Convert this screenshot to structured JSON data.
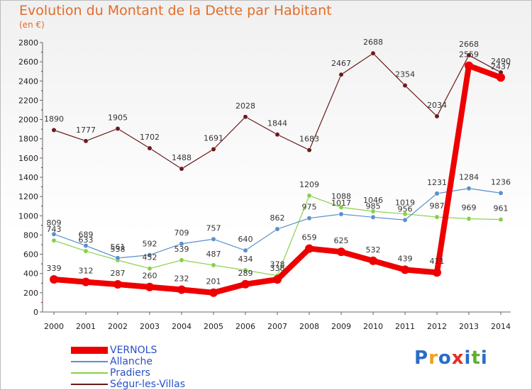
{
  "colors": {
    "VERNOLS": "#ee0000",
    "Allanche": "#5a8fcc",
    "Pradiers": "#88d04a",
    "Segur": "#6a1a1a",
    "title": "#e36b2a",
    "legend_text": "#2a50c8"
  },
  "chart_data": {
    "type": "line",
    "title": "Evolution du Montant de la Dette par Habitant",
    "ylabel": "(en €)",
    "x": [
      "2000",
      "2001",
      "2002",
      "2003",
      "2004",
      "2005",
      "2006",
      "2007",
      "2008",
      "2009",
      "2010",
      "2011",
      "2012",
      "2013",
      "2014"
    ],
    "ylim": [
      0,
      2800
    ],
    "yticks": [
      0,
      200,
      400,
      600,
      800,
      1000,
      1200,
      1400,
      1600,
      1800,
      2000,
      2200,
      2400,
      2600,
      2800
    ],
    "grid": false,
    "legend_position": "bottom-left",
    "series": [
      {
        "name": "VERNOLS",
        "values": [
          339,
          312,
          287,
          260,
          232,
          201,
          289,
          338,
          659,
          625,
          532,
          439,
          411,
          2559,
          2437
        ]
      },
      {
        "name": "Allanche",
        "values": [
          809,
          689,
          561,
          592,
          709,
          757,
          640,
          862,
          975,
          1017,
          985,
          956,
          1231,
          1284,
          1236
        ]
      },
      {
        "name": "Pradiers",
        "values": [
          743,
          633,
          538,
          452,
          539,
          487,
          434,
          378,
          1209,
          1088,
          1046,
          1019,
          987,
          969,
          961
        ]
      },
      {
        "name": "Ségur-les-Villas",
        "values": [
          1890,
          1777,
          1905,
          1702,
          1488,
          1691,
          2028,
          1844,
          1683,
          2467,
          2688,
          2354,
          2034,
          2668,
          2490
        ]
      }
    ]
  },
  "logo": {
    "letters": [
      "P",
      "r",
      "o",
      "x",
      "i",
      "t",
      "i"
    ],
    "colors": [
      "#2a6cc8",
      "#f0a020",
      "#2a6cc8",
      "#e03020",
      "#2a6cc8",
      "#60b030",
      "#2a6cc8"
    ]
  }
}
